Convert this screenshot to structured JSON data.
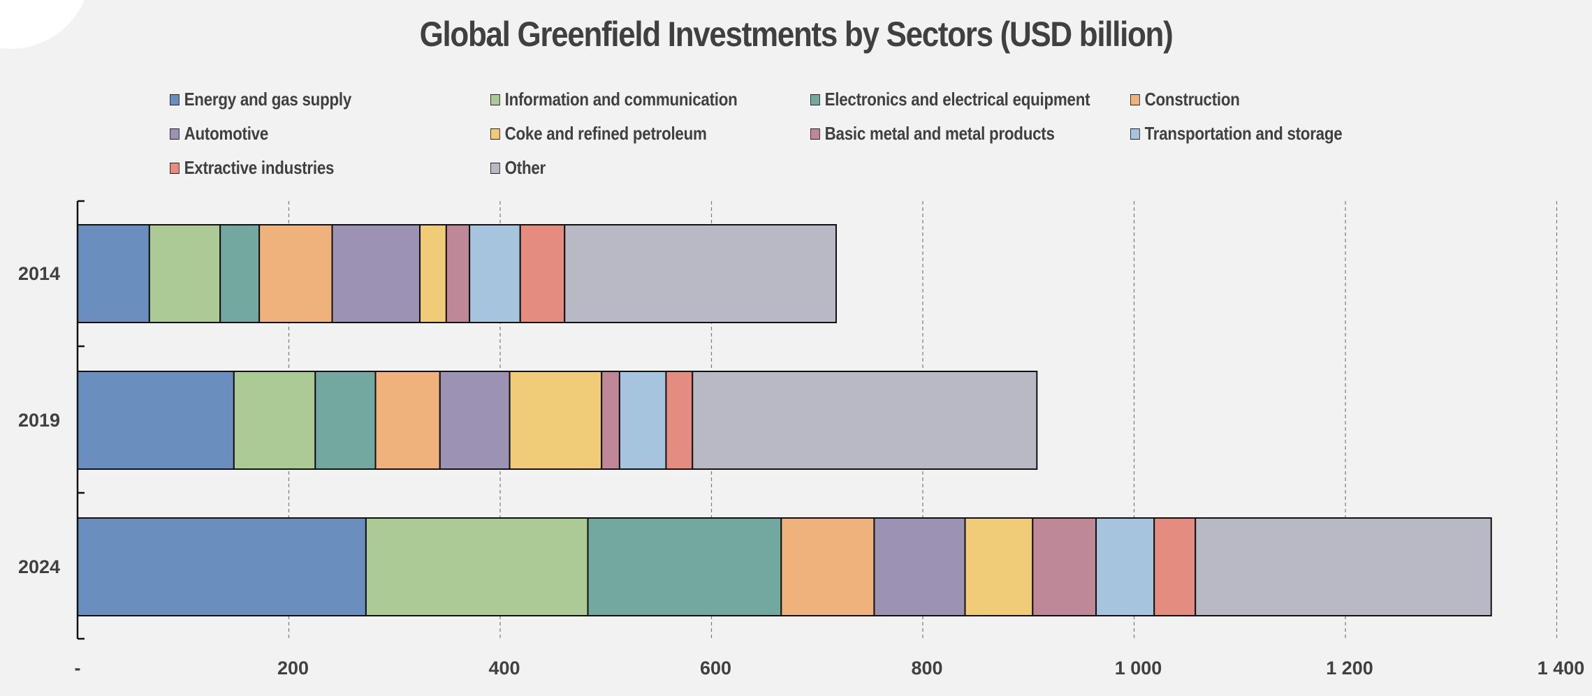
{
  "chart_data": {
    "type": "bar",
    "orientation": "horizontal",
    "stacked": true,
    "title": "Global Greenfield Investments by Sectors (USD billion)",
    "categories": [
      "2014",
      "2019",
      "2024"
    ],
    "xlim": [
      0,
      1400
    ],
    "x_ticks": [
      0,
      200,
      400,
      600,
      800,
      1000,
      1200,
      1400
    ],
    "x_tick_labels": [
      "-",
      "200",
      "400",
      "600",
      "800",
      "1 000",
      "1 200",
      "1 400"
    ],
    "grid": "vertical dashed",
    "legend_position": "top",
    "series": [
      {
        "name": "Energy and gas supply",
        "color": "#6a8fbe",
        "values": [
          68,
          148,
          273
        ]
      },
      {
        "name": "Information and communication",
        "color": "#abca96",
        "values": [
          67,
          77,
          210
        ]
      },
      {
        "name": "Electronics and electrical equipment",
        "color": "#72a8a0",
        "values": [
          37,
          57,
          183
        ]
      },
      {
        "name": "Construction",
        "color": "#f0b27c",
        "values": [
          69,
          61,
          88
        ]
      },
      {
        "name": "Automotive",
        "color": "#9c92b4",
        "values": [
          83,
          66,
          86
        ]
      },
      {
        "name": "Coke and refined petroleum",
        "color": "#f0cc78",
        "values": [
          25,
          87,
          64
        ]
      },
      {
        "name": "Basic metal and metal products",
        "color": "#be8898",
        "values": [
          22,
          17,
          60
        ]
      },
      {
        "name": "Transportation and storage",
        "color": "#a6c4de",
        "values": [
          48,
          44,
          55
        ]
      },
      {
        "name": "Extractive industries",
        "color": "#e48c80",
        "values": [
          42,
          25,
          39
        ]
      },
      {
        "name": "Other",
        "color": "#b9b9c5",
        "values": [
          257,
          326,
          280
        ]
      }
    ]
  }
}
